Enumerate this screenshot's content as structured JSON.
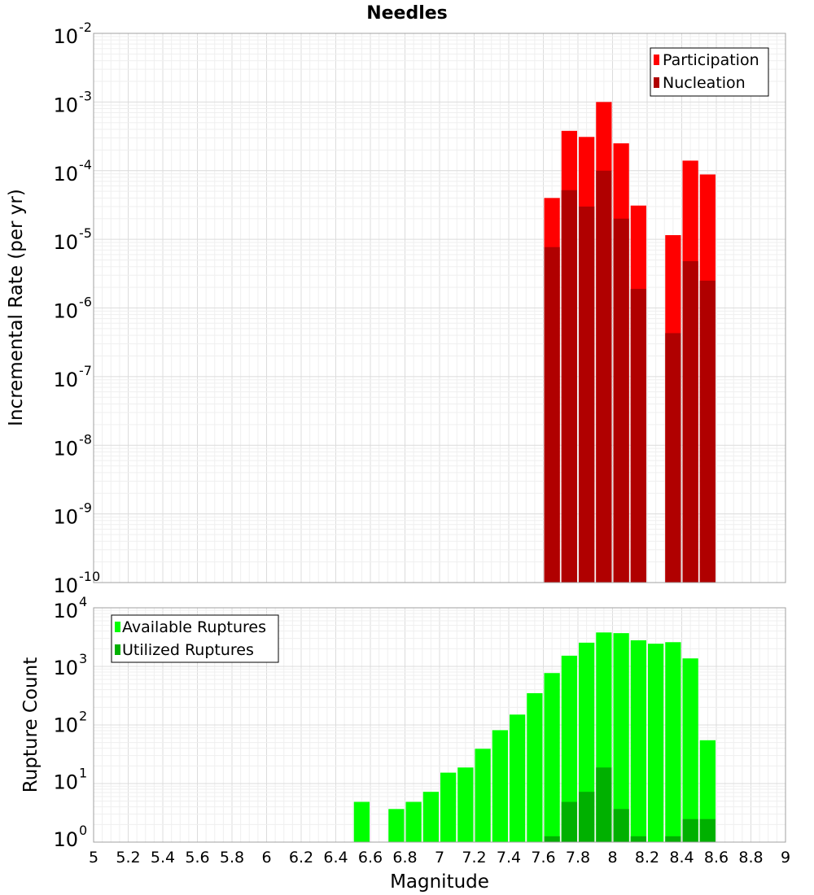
{
  "chart_data": [
    {
      "type": "bar",
      "title": "Needles",
      "xlabel": "Magnitude",
      "ylabel": "Incremental Rate (per yr)",
      "yscale": "log",
      "ylim": [
        1e-10,
        0.01
      ],
      "xlim": [
        5,
        9
      ],
      "bin_width": 0.1,
      "grid": true,
      "legend_position": "top-right",
      "colors": {
        "Participation": "#ff0000",
        "Nucleation": "#b00000"
      },
      "x": [
        7.65,
        7.75,
        7.85,
        7.95,
        8.05,
        8.15,
        8.35,
        8.45,
        8.55
      ],
      "series": [
        {
          "name": "Participation",
          "values": [
            4e-05,
            0.00038,
            0.00031,
            0.001,
            0.00025,
            3.1e-05,
            1.15e-05,
            0.00014,
            8.8e-05
          ]
        },
        {
          "name": "Nucleation",
          "values": [
            7.7e-06,
            5.2e-05,
            3e-05,
            0.0001,
            2e-05,
            1.9e-06,
            4.3e-07,
            4.8e-06,
            2.5e-06
          ]
        }
      ]
    },
    {
      "type": "bar",
      "title": "",
      "xlabel": "Magnitude",
      "ylabel": "Rupture Count",
      "yscale": "log",
      "ylim": [
        1,
        10000
      ],
      "xlim": [
        5,
        9
      ],
      "bin_width": 0.1,
      "grid": true,
      "legend_position": "top-left",
      "colors": {
        "Available Ruptures": "#00ff00",
        "Utilized Ruptures": "#00b000"
      },
      "x": [
        6.55,
        6.75,
        6.85,
        6.95,
        7.05,
        7.15,
        7.25,
        7.35,
        7.45,
        7.55,
        7.65,
        7.75,
        7.85,
        7.95,
        8.05,
        8.15,
        8.25,
        8.35,
        8.45,
        8.55
      ],
      "series": [
        {
          "name": "Available Ruptures",
          "values": [
            4,
            3,
            4,
            6,
            13,
            16,
            34,
            72,
            135,
            320,
            720,
            1450,
            2450,
            3700,
            3600,
            2700,
            2350,
            2500,
            1300,
            48
          ]
        },
        {
          "name": "Utilized Ruptures",
          "values": [
            0,
            0,
            0,
            0,
            0,
            0,
            0,
            0,
            0,
            0,
            1,
            4,
            6,
            16,
            3,
            1,
            0,
            1,
            2,
            2
          ]
        }
      ]
    }
  ],
  "x_ticks": [
    "5",
    "5.2",
    "5.4",
    "5.6",
    "5.8",
    "6",
    "6.2",
    "6.4",
    "6.6",
    "6.8",
    "7",
    "7.2",
    "7.4",
    "7.6",
    "7.8",
    "8",
    "8.2",
    "8.4",
    "8.6",
    "8.8",
    "9"
  ],
  "top_y_ticks": [
    {
      "base": "10",
      "exp": "-2"
    },
    {
      "base": "10",
      "exp": "-3"
    },
    {
      "base": "10",
      "exp": "-4"
    },
    {
      "base": "10",
      "exp": "-5"
    },
    {
      "base": "10",
      "exp": "-6"
    },
    {
      "base": "10",
      "exp": "-7"
    },
    {
      "base": "10",
      "exp": "-8"
    },
    {
      "base": "10",
      "exp": "-9"
    },
    {
      "base": "10",
      "exp": "-10"
    }
  ],
  "bottom_y_ticks": [
    {
      "base": "10",
      "exp": "4"
    },
    {
      "base": "10",
      "exp": "3"
    },
    {
      "base": "10",
      "exp": "2"
    },
    {
      "base": "10",
      "exp": "1"
    },
    {
      "base": "10",
      "exp": "0"
    }
  ]
}
